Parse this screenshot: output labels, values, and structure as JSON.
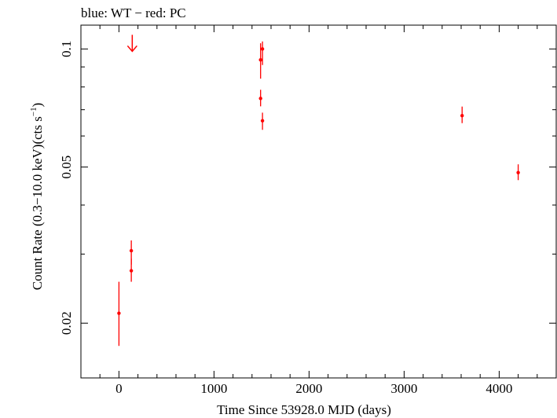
{
  "chart_data": {
    "type": "scatter",
    "title": "blue: WT − red: PC",
    "xlabel": "Time Since 53928.0 MJD (days)",
    "ylabel_main": "Count Rate (0.3−10.0 keV)(cts s",
    "ylabel_sup": "−1",
    "ylabel_tail": ")",
    "xlim": [
      -400,
      4600
    ],
    "ylim": [
      0.0145,
      0.115
    ],
    "yscale": "log",
    "x_major_ticks": [
      0,
      1000,
      2000,
      3000,
      4000
    ],
    "x_tick_labels": [
      "0",
      "1000",
      "2000",
      "3000",
      "4000"
    ],
    "x_minor_step": 200,
    "y_major_ticks": [
      0.02,
      0.05,
      0.1
    ],
    "y_tick_labels": [
      "0.02",
      "0.05",
      "0.1"
    ],
    "y_minor_ticks": [
      0.03,
      0.04,
      0.06,
      0.07,
      0.08,
      0.09
    ],
    "grid": false,
    "series": [
      {
        "color": "#ff0000",
        "points": [
          {
            "x": 0,
            "y": 0.0212,
            "ylo": 0.0175,
            "yhi": 0.0255
          },
          {
            "x": 130,
            "y": 0.0306,
            "ylo": 0.0282,
            "yhi": 0.0325
          },
          {
            "x": 130,
            "y": 0.0272,
            "ylo": 0.0255,
            "yhi": 0.0292
          },
          {
            "x": 1490,
            "y": 0.0938,
            "ylo": 0.084,
            "yhi": 0.1034
          },
          {
            "x": 1510,
            "y": 0.1,
            "ylo": 0.091,
            "yhi": 0.1045
          },
          {
            "x": 1490,
            "y": 0.0748,
            "ylo": 0.0714,
            "yhi": 0.0787
          },
          {
            "x": 1510,
            "y": 0.0656,
            "ylo": 0.0622,
            "yhi": 0.0688
          },
          {
            "x": 3610,
            "y": 0.0676,
            "ylo": 0.0647,
            "yhi": 0.0713
          },
          {
            "x": 4200,
            "y": 0.0484,
            "ylo": 0.0463,
            "yhi": 0.0508
          }
        ],
        "upper_limits": [
          {
            "x": 140,
            "y": 0.1
          }
        ]
      }
    ]
  }
}
